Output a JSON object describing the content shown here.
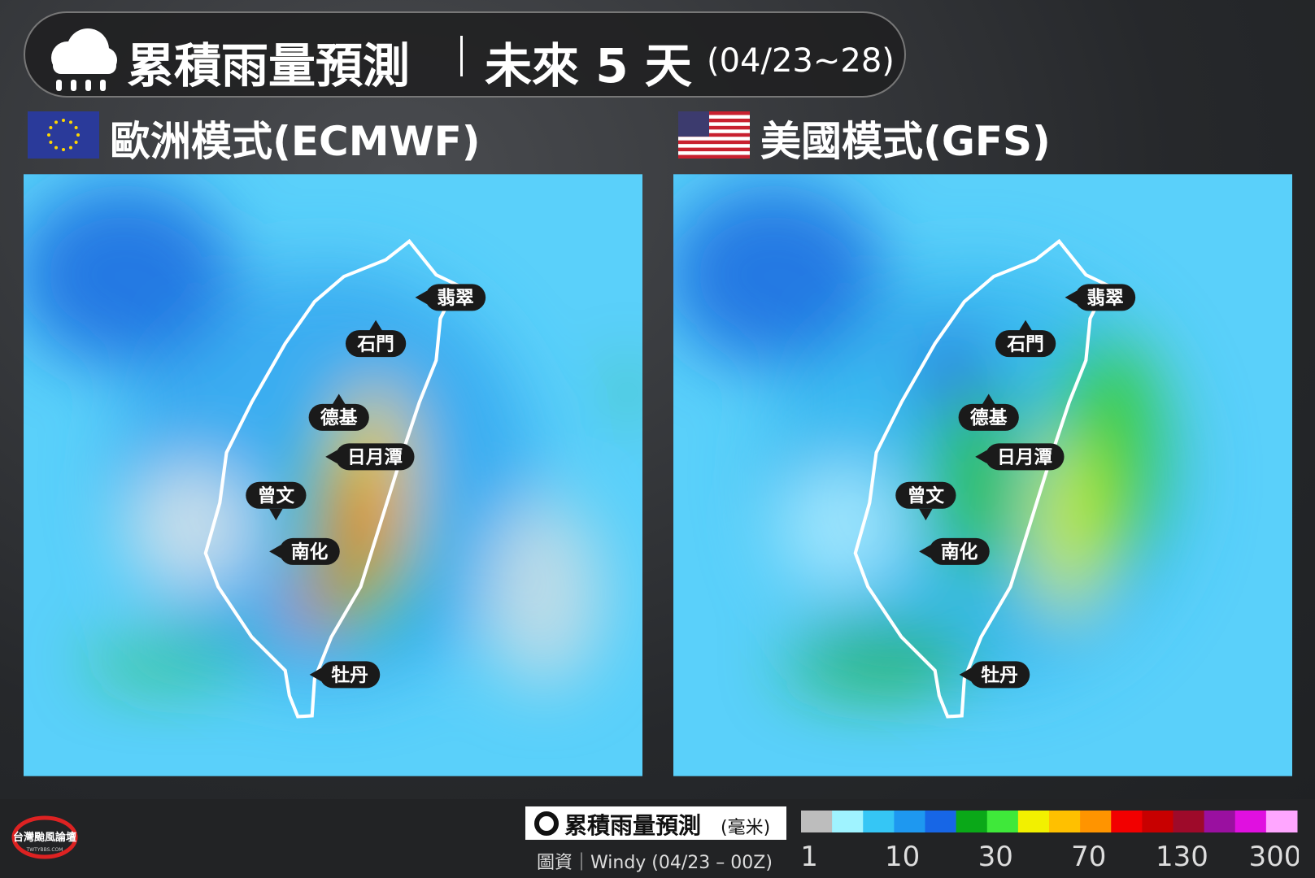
{
  "header": {
    "title": "累積雨量預測",
    "subtitle": "未來 5 天",
    "date": "(04/23~28)"
  },
  "panels": [
    {
      "label": "歐洲模式(ECMWF)",
      "stations": [
        "翡翠",
        "石門",
        "德基",
        "日月潭",
        "曾文",
        "南化",
        "牡丹"
      ]
    },
    {
      "label": "美國模式(GFS)",
      "stations": [
        "翡翠",
        "石門",
        "德基",
        "日月潭",
        "曾文",
        "南化",
        "牡丹"
      ]
    }
  ],
  "legend": {
    "title": "累積雨量預測",
    "unit": "(毫米)",
    "source": "圖資｜Windy (04/23 – 00Z)",
    "colors": [
      "#bdbdbd",
      "#9ff3ff",
      "#35c6f5",
      "#1e98f0",
      "#1766e6",
      "#0aa818",
      "#3fe83a",
      "#f2f000",
      "#ffc000",
      "#ff9400",
      "#f20000",
      "#c80000",
      "#9e0a2a",
      "#9a10a0",
      "#e010e0",
      "#ffa6ff"
    ],
    "ticks": [
      1,
      10,
      30,
      70,
      130,
      300
    ]
  },
  "logo": {
    "name": "台灣颱風論壇",
    "site": "TWTYBBS.COM"
  }
}
